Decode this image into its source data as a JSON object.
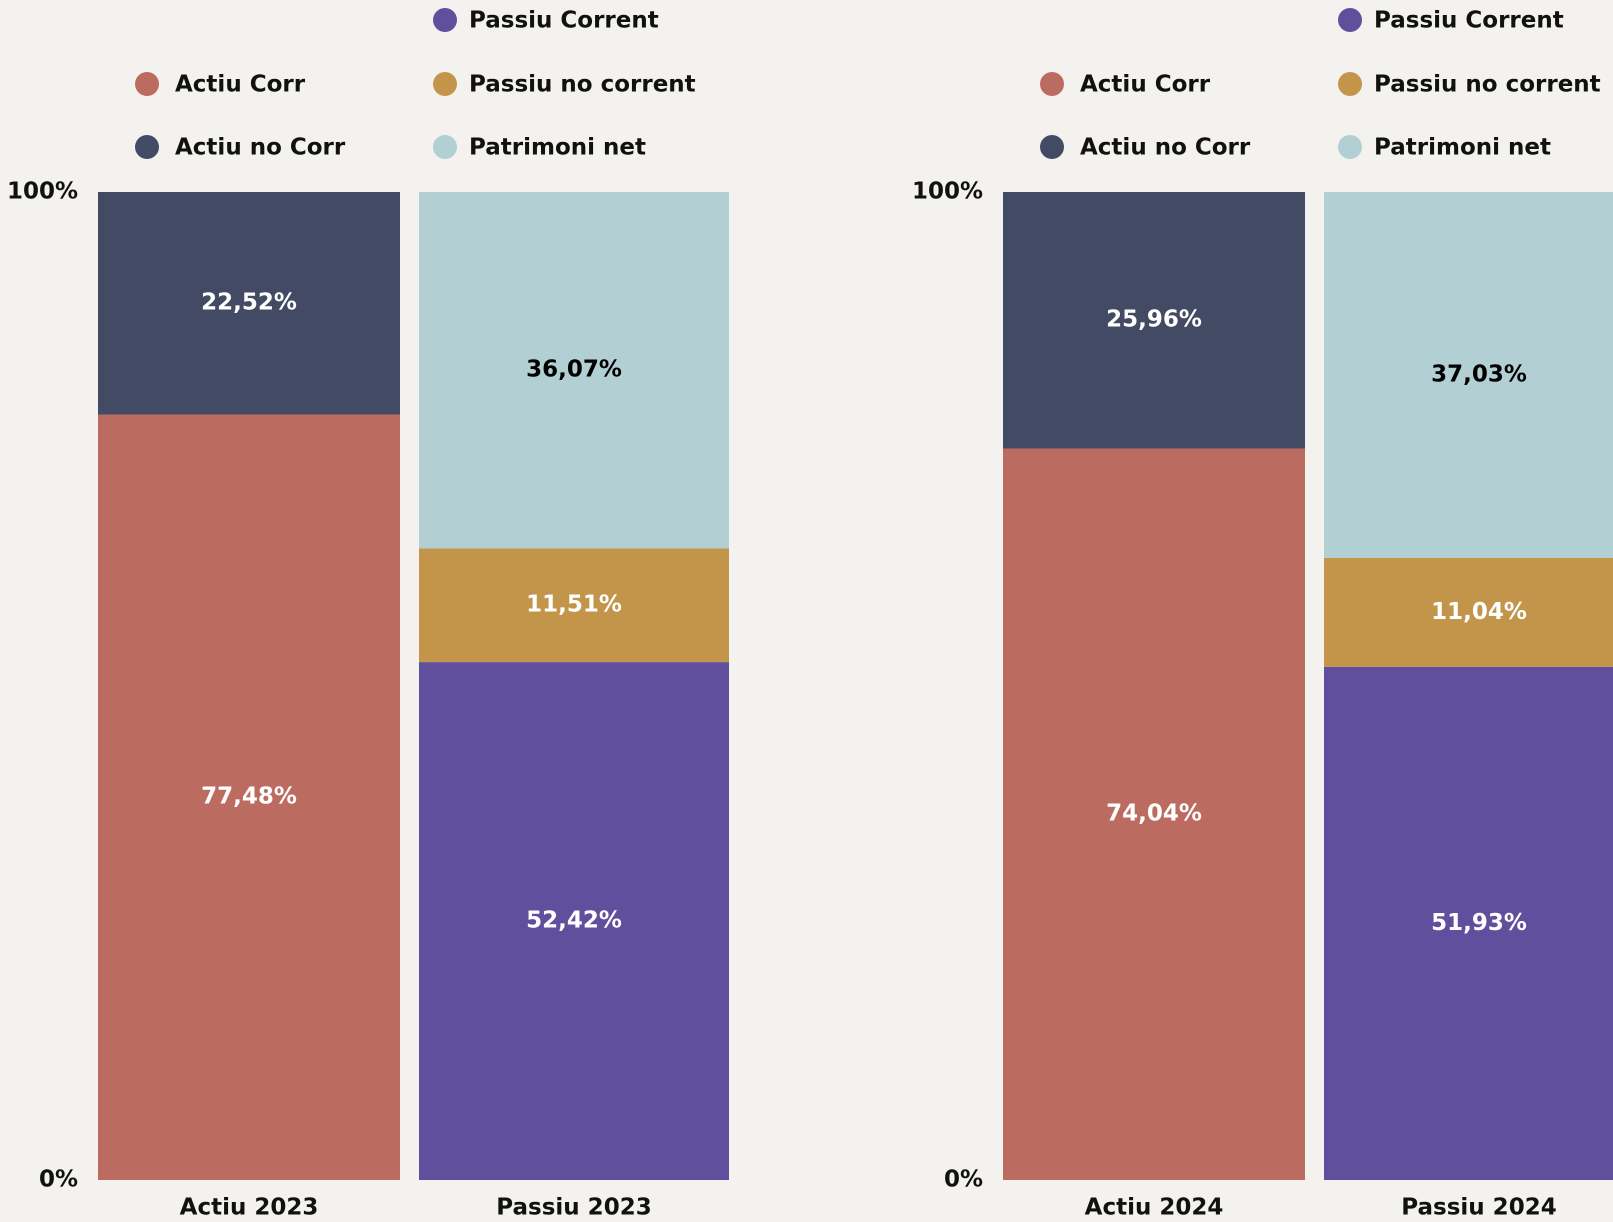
{
  "chart_data": [
    {
      "type": "stacked_bar",
      "categories": [
        "Actiu 2023",
        "Passiu 2023"
      ],
      "ylim": [
        0,
        100
      ],
      "yticks": [
        {
          "value": 0,
          "label": "0%"
        },
        {
          "value": 100,
          "label": "100%"
        }
      ],
      "series": [
        {
          "name": "Actiu Corr",
          "color": "#bc6b61",
          "label_color": "#ffffff",
          "values": [
            77.48,
            null
          ],
          "value_labels": [
            "77,48%",
            null
          ]
        },
        {
          "name": "Actiu no Corr",
          "color": "#434a63",
          "label_color": "#ffffff",
          "values": [
            22.52,
            null
          ],
          "value_labels": [
            "22,52%",
            null
          ]
        },
        {
          "name": "Passiu Corrent",
          "color": "#5f4f9c",
          "label_color": "#ffffff",
          "values": [
            null,
            52.42
          ],
          "value_labels": [
            null,
            "52,42%"
          ]
        },
        {
          "name": "Passiu no corrent",
          "color": "#c3954b",
          "label_color": "#ffffff",
          "values": [
            null,
            11.51
          ],
          "value_labels": [
            null,
            "11,51%"
          ]
        },
        {
          "name": "Patrimoni net",
          "color": "#b2cfd3",
          "label_color": "#000000",
          "values": [
            null,
            36.07
          ],
          "value_labels": [
            null,
            "36,07%"
          ]
        }
      ]
    },
    {
      "type": "stacked_bar",
      "categories": [
        "Actiu 2024",
        "Passiu 2024"
      ],
      "ylim": [
        0,
        100
      ],
      "yticks": [
        {
          "value": 0,
          "label": "0%"
        },
        {
          "value": 100,
          "label": "100%"
        }
      ],
      "series": [
        {
          "name": "Actiu Corr",
          "color": "#bc6b61",
          "label_color": "#ffffff",
          "values": [
            74.04,
            null
          ],
          "value_labels": [
            "74,04%",
            null
          ]
        },
        {
          "name": "Actiu no Corr",
          "color": "#434a63",
          "label_color": "#ffffff",
          "values": [
            25.96,
            null
          ],
          "value_labels": [
            "25,96%",
            null
          ]
        },
        {
          "name": "Passiu Corrent",
          "color": "#5f4f9c",
          "label_color": "#ffffff",
          "values": [
            null,
            51.93
          ],
          "value_labels": [
            null,
            "51,93%"
          ]
        },
        {
          "name": "Passiu no corrent",
          "color": "#c3954b",
          "label_color": "#ffffff",
          "values": [
            null,
            11.04
          ],
          "value_labels": [
            null,
            "11,04%"
          ]
        },
        {
          "name": "Patrimoni net",
          "color": "#b2cfd3",
          "label_color": "#000000",
          "values": [
            null,
            37.03
          ],
          "value_labels": [
            null,
            "37,03%"
          ]
        }
      ]
    }
  ]
}
